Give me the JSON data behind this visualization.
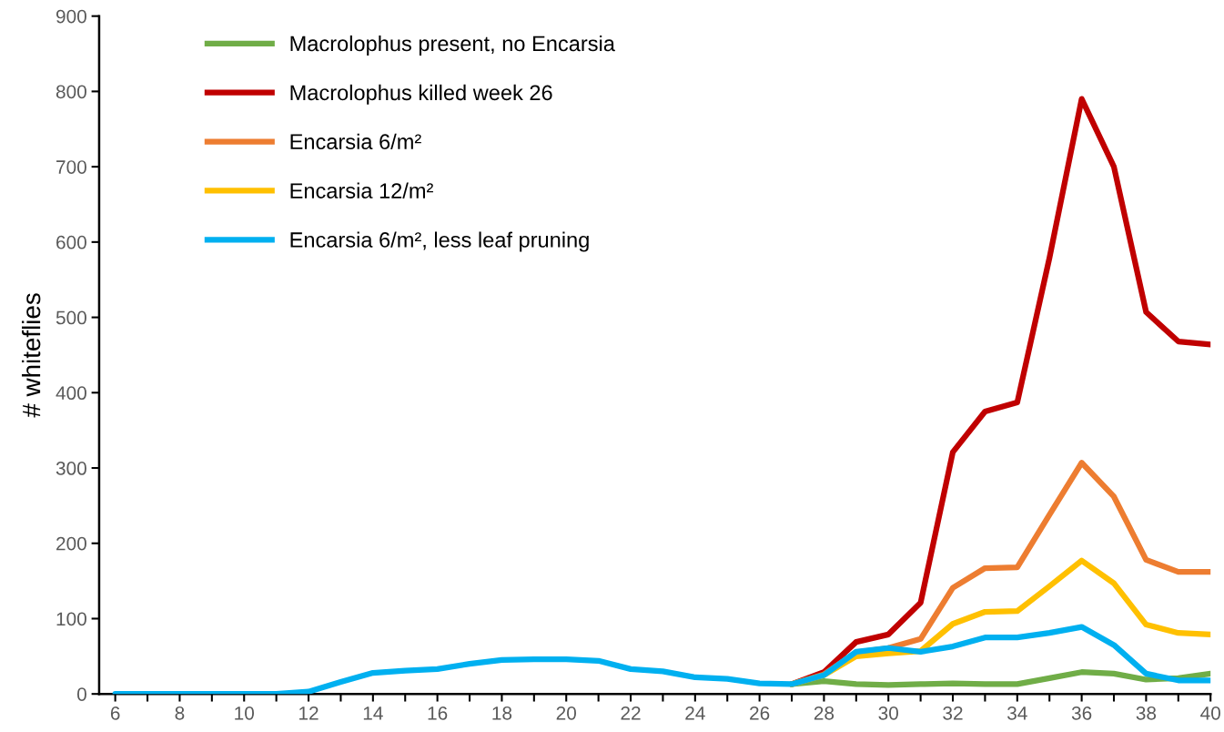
{
  "chart_data": {
    "type": "line",
    "ylabel": "# whiteflies",
    "x": [
      6,
      7,
      8,
      9,
      10,
      11,
      12,
      13,
      14,
      15,
      16,
      17,
      18,
      19,
      20,
      21,
      22,
      23,
      24,
      25,
      26,
      27,
      28,
      29,
      30,
      31,
      32,
      33,
      34,
      35,
      36,
      37,
      38,
      39,
      40
    ],
    "xlim": [
      5.5,
      40
    ],
    "xticks": [
      6,
      {
        "value": 7,
        "label": null
      },
      8,
      {
        "value": 9,
        "label": null
      },
      10,
      {
        "value": 11,
        "label": null
      },
      12,
      {
        "value": 13,
        "label": null
      },
      14,
      {
        "value": 15,
        "label": null
      },
      16,
      {
        "value": 17,
        "label": null
      },
      18,
      {
        "value": 19,
        "label": null
      },
      20,
      {
        "value": 21,
        "label": null
      },
      22,
      {
        "value": 23,
        "label": null
      },
      24,
      {
        "value": 25,
        "label": null
      },
      26,
      {
        "value": 27,
        "label": null
      },
      28,
      {
        "value": 29,
        "label": null
      },
      30,
      {
        "value": 31,
        "label": null
      },
      32,
      {
        "value": 33,
        "label": null
      },
      34,
      {
        "value": 35,
        "label": null
      },
      36,
      {
        "value": 37,
        "label": null
      },
      38,
      {
        "value": 39,
        "label": null
      },
      40
    ],
    "ylim": [
      0,
      900
    ],
    "yticks": [
      0,
      100,
      200,
      300,
      400,
      500,
      600,
      700,
      800,
      900
    ],
    "grid": false,
    "legend": "top left",
    "marker": "none",
    "line_style": "solid",
    "series": [
      {
        "name": "Macrolophus present, no Encarsia",
        "color": "#70ad47",
        "values": [
          null,
          null,
          null,
          null,
          null,
          null,
          null,
          null,
          null,
          null,
          null,
          null,
          null,
          null,
          null,
          null,
          null,
          null,
          null,
          null,
          null,
          13,
          17,
          13,
          12,
          13,
          14,
          13,
          13,
          21,
          29,
          27,
          19,
          21,
          27
        ]
      },
      {
        "name": "Macrolophus killed week 26",
        "color": "#c00000",
        "values": [
          null,
          null,
          null,
          null,
          null,
          null,
          null,
          null,
          null,
          null,
          null,
          null,
          null,
          null,
          null,
          null,
          null,
          null,
          null,
          null,
          null,
          13,
          29,
          69,
          79,
          121,
          321,
          375,
          387,
          579,
          790,
          700,
          507,
          468,
          464
        ]
      },
      {
        "name": "Encarsia 6/m²",
        "color": "#ed7d31",
        "values": [
          null,
          null,
          null,
          null,
          null,
          null,
          null,
          null,
          null,
          null,
          null,
          null,
          null,
          null,
          null,
          null,
          null,
          null,
          null,
          null,
          null,
          13,
          26,
          55,
          61,
          73,
          141,
          167,
          168,
          238,
          307,
          262,
          178,
          162,
          162
        ]
      },
      {
        "name": "Encarsia 12/m²",
        "color": "#ffc000",
        "values": [
          null,
          null,
          null,
          null,
          null,
          null,
          null,
          null,
          null,
          null,
          null,
          null,
          null,
          null,
          null,
          null,
          null,
          null,
          null,
          null,
          null,
          13,
          25,
          50,
          54,
          57,
          93,
          109,
          110,
          143,
          177,
          147,
          92,
          81,
          79
        ]
      },
      {
        "name": "Encarsia 6/m², less leaf pruning",
        "color": "#00b0f0",
        "values": [
          0,
          0,
          0,
          0,
          0,
          0,
          3,
          16,
          28,
          31,
          33,
          40,
          45,
          46,
          46,
          44,
          33,
          30,
          22,
          20,
          14,
          13,
          25,
          56,
          61,
          56,
          63,
          75,
          75,
          81,
          89,
          65,
          27,
          18,
          18
        ]
      }
    ]
  }
}
